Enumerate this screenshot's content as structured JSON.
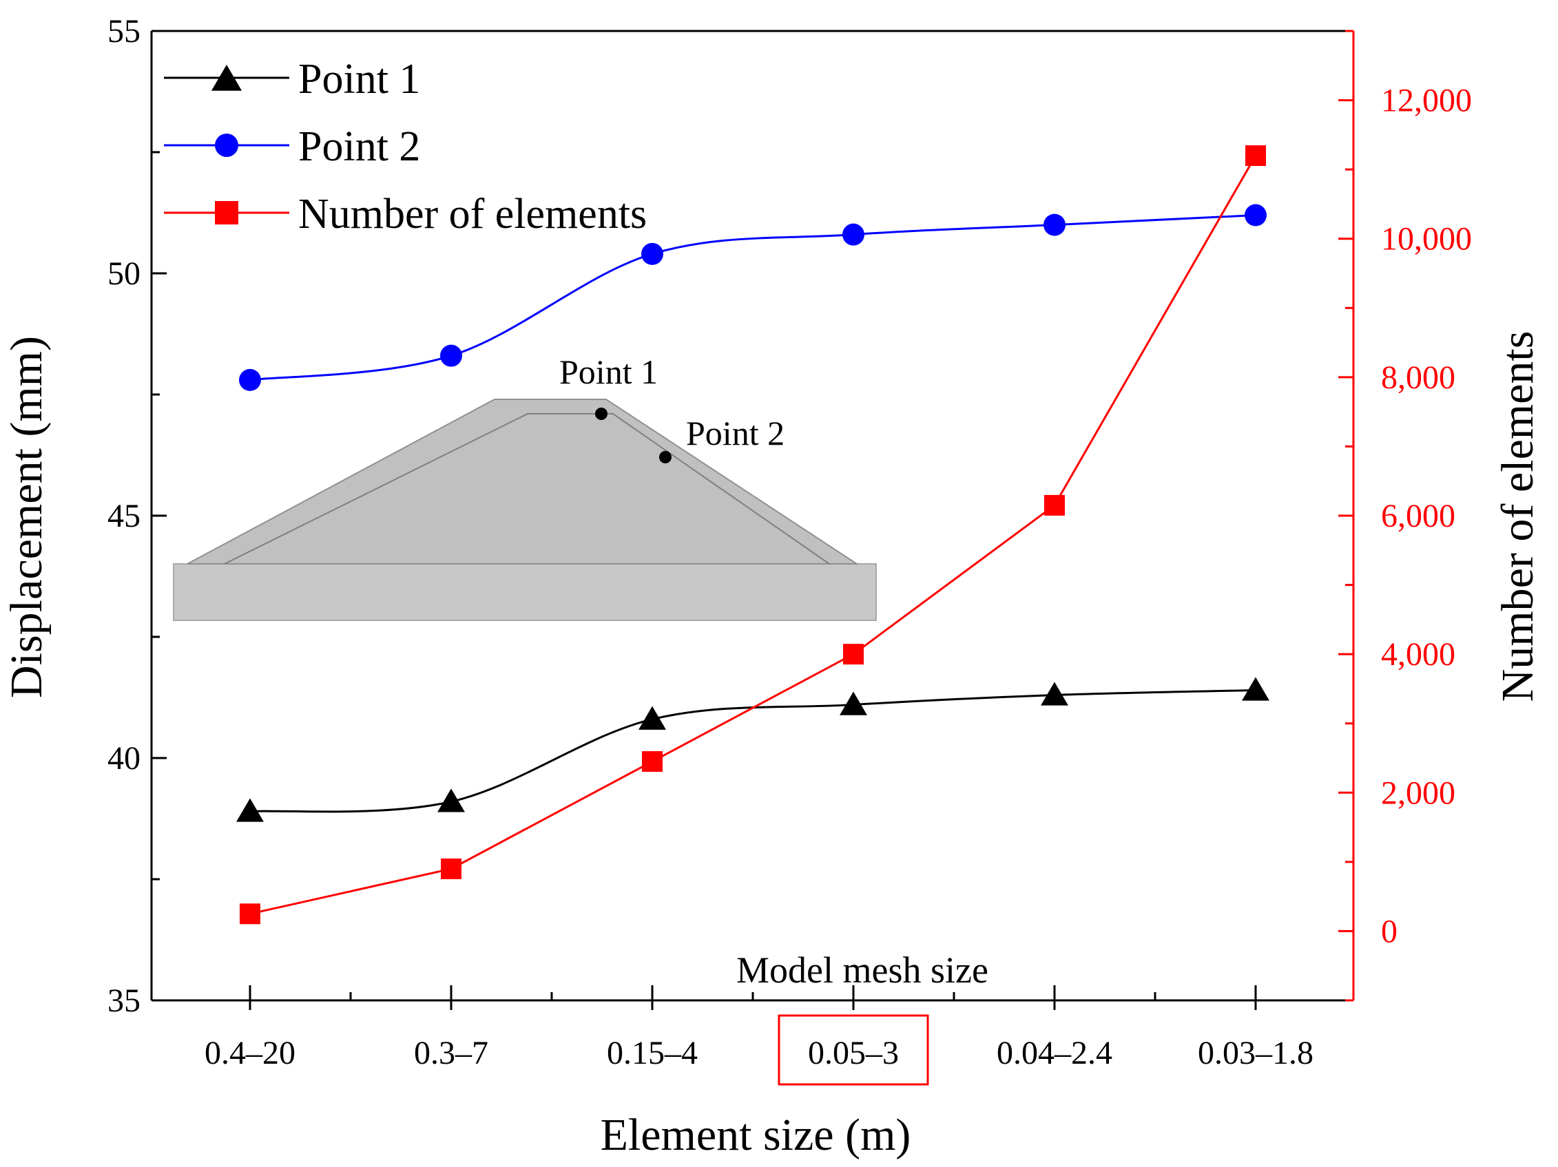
{
  "chart_data": {
    "type": "line",
    "categories": [
      "0.4–20",
      "0.3–7",
      "0.15–4",
      "0.05–3",
      "0.04–2.4",
      "0.03–1.8"
    ],
    "highlighted_category": "0.05–3",
    "xlabel": "Element size (m)",
    "ylabel": "Displacement (mm)",
    "y2label": "Number of elements",
    "ylim": [
      35,
      55
    ],
    "y2lim": [
      -1000,
      13000
    ],
    "yticks": [
      35,
      40,
      45,
      50,
      55
    ],
    "yticklabels": [
      "35",
      "40",
      "45",
      "50",
      "55"
    ],
    "y2ticks": [
      0,
      2000,
      4000,
      6000,
      8000,
      10000,
      12000
    ],
    "y2ticklabels": [
      "0",
      "2,000",
      "4,000",
      "6,000",
      "8,000",
      "10,000",
      "12,000"
    ],
    "annotation": "Model mesh size",
    "series": [
      {
        "name": "Point 1",
        "axis": "left",
        "marker": "triangle",
        "color": "#000000",
        "values": [
          38.9,
          39.1,
          40.8,
          41.1,
          41.3,
          41.4
        ]
      },
      {
        "name": "Point 2",
        "axis": "left",
        "marker": "circle",
        "color": "#0000ff",
        "values": [
          47.8,
          48.3,
          50.4,
          50.8,
          51.0,
          51.2
        ]
      },
      {
        "name": "Number of elements",
        "axis": "right",
        "marker": "square",
        "color": "#ff0000",
        "values": [
          250,
          900,
          2450,
          4000,
          6150,
          11200
        ]
      }
    ],
    "legend_position": "top-left",
    "inset": {
      "label_point1": "Point 1",
      "label_point2": "Point 2"
    }
  }
}
